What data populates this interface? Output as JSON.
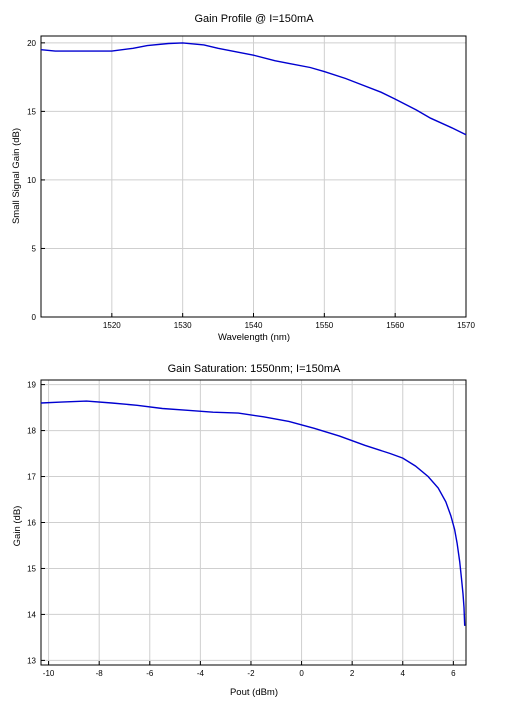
{
  "chart_data": [
    {
      "type": "line",
      "title": "Gain Profile @ I=150mA",
      "xlabel": "Wavelength (nm)",
      "ylabel": "Small Signal Gain (dB)",
      "xlim": [
        1510,
        1570
      ],
      "ylim": [
        0,
        20.5
      ],
      "xticks": [
        1520,
        1530,
        1540,
        1550,
        1560,
        1570
      ],
      "yticks": [
        0,
        5,
        10,
        15,
        20
      ],
      "xtick_labels": [
        "1520",
        "1530",
        "1540",
        "1550",
        "1560",
        "1570"
      ],
      "ytick_labels": [
        "0",
        "5",
        "10",
        "15",
        "20"
      ],
      "grid": true,
      "series": [
        {
          "color": "#0000d0",
          "x": [
            1510,
            1512,
            1515,
            1518,
            1520,
            1523,
            1525,
            1528,
            1530,
            1533,
            1535,
            1538,
            1540,
            1543,
            1545,
            1548,
            1550,
            1553,
            1555,
            1558,
            1560,
            1563,
            1565,
            1568,
            1570
          ],
          "y": [
            19.5,
            19.4,
            19.4,
            19.4,
            19.4,
            19.6,
            19.8,
            19.95,
            20.0,
            19.85,
            19.6,
            19.3,
            19.1,
            18.7,
            18.5,
            18.2,
            17.9,
            17.4,
            17.0,
            16.4,
            15.9,
            15.1,
            14.5,
            13.8,
            13.3
          ]
        }
      ]
    },
    {
      "type": "line",
      "title": "Gain Saturation: 1550nm; I=150mA",
      "xlabel": "Pout (dBm)",
      "ylabel": "Gain (dB)",
      "xlim": [
        -10.3,
        6.5
      ],
      "ylim": [
        12.9,
        19.1
      ],
      "xticks": [
        -10,
        -8,
        -6,
        -4,
        -2,
        0,
        2,
        4,
        6
      ],
      "yticks": [
        13,
        14,
        15,
        16,
        17,
        18,
        19
      ],
      "xtick_labels": [
        "-10",
        "-8",
        "-6",
        "-4",
        "-2",
        "0",
        "2",
        "4",
        "6"
      ],
      "ytick_labels": [
        "13",
        "14",
        "15",
        "16",
        "17",
        "18",
        "19"
      ],
      "grid": true,
      "series": [
        {
          "color": "#0000d0",
          "x": [
            -10.3,
            -9.5,
            -8.5,
            -7.5,
            -6.5,
            -5.5,
            -4.5,
            -3.5,
            -2.5,
            -1.5,
            -0.5,
            0.5,
            1.5,
            2.5,
            3.5,
            4.0,
            4.5,
            5.0,
            5.4,
            5.7,
            5.9,
            6.05,
            6.15,
            6.25,
            6.32,
            6.38,
            6.42,
            6.45
          ],
          "y": [
            18.6,
            18.62,
            18.64,
            18.6,
            18.55,
            18.48,
            18.44,
            18.4,
            18.38,
            18.3,
            18.2,
            18.05,
            17.88,
            17.68,
            17.5,
            17.4,
            17.23,
            17.0,
            16.75,
            16.45,
            16.15,
            15.85,
            15.55,
            15.15,
            14.8,
            14.45,
            14.15,
            13.75
          ]
        }
      ]
    }
  ]
}
